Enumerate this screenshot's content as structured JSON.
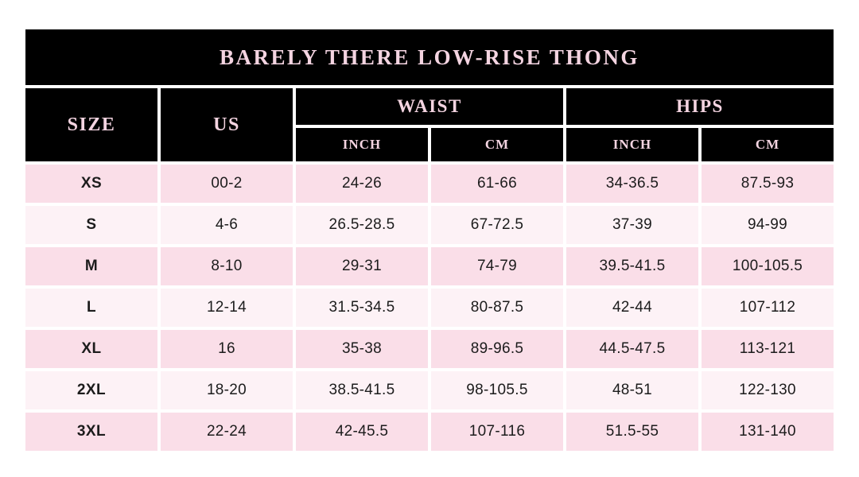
{
  "chart_data": {
    "type": "table",
    "title": "BARELY THERE LOW-RISE THONG",
    "headers": {
      "size": "SIZE",
      "us": "US",
      "waist": "WAIST",
      "hips": "HIPS",
      "waist_inch": "INCH",
      "waist_cm": "CM",
      "hips_inch": "INCH",
      "hips_cm": "CM"
    },
    "column_groups": [
      {
        "label": "WAIST",
        "children": [
          "INCH",
          "CM"
        ]
      },
      {
        "label": "HIPS",
        "children": [
          "INCH",
          "CM"
        ]
      }
    ],
    "row_keys": [
      "size",
      "us",
      "waist_inch",
      "waist_cm",
      "hips_inch",
      "hips_cm"
    ],
    "rows": [
      [
        "XS",
        "00-2",
        "24-26",
        "61-66",
        "34-36.5",
        "87.5-93"
      ],
      [
        "S",
        "4-6",
        "26.5-28.5",
        "67-72.5",
        "37-39",
        "94-99"
      ],
      [
        "M",
        "8-10",
        "29-31",
        "74-79",
        "39.5-41.5",
        "100-105.5"
      ],
      [
        "L",
        "12-14",
        "31.5-34.5",
        "80-87.5",
        "42-44",
        "107-112"
      ],
      [
        "XL",
        "16",
        "35-38",
        "89-96.5",
        "44.5-47.5",
        "113-121"
      ],
      [
        "2XL",
        "18-20",
        "38.5-41.5",
        "98-105.5",
        "48-51",
        "122-130"
      ],
      [
        "3XL",
        "22-24",
        "42-45.5",
        "107-116",
        "51.5-55",
        "131-140"
      ]
    ],
    "layout_hints": {
      "row_shading": "alternating starting dark on first data row",
      "header_merges": "SIZE and US span 2 header rows; WAIST and HIPS each span INCH+CM columns"
    }
  },
  "colors": {
    "page_bg": "#ffffff",
    "header_bg": "#000000",
    "header_text": "#f4d4e1",
    "row_dark": "#fadee8",
    "row_light": "#fdf2f6",
    "cell_text": "#1c1c1c"
  }
}
